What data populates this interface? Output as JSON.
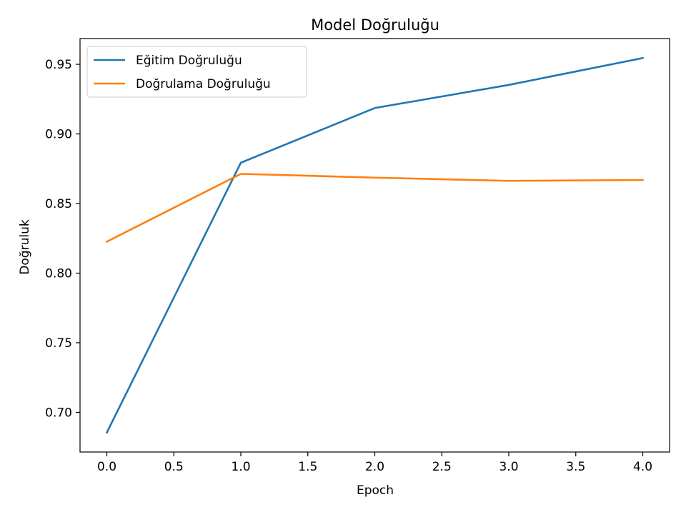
{
  "chart_data": {
    "type": "line",
    "title": "Model Doğruluğu",
    "xlabel": "Epoch",
    "ylabel": "Doğruluk",
    "x": [
      0,
      1,
      2,
      3,
      4
    ],
    "series": [
      {
        "name": "Eğitim Doğruluğu",
        "color": "#1f77b4",
        "values": [
          0.6855,
          0.8793,
          0.9186,
          0.9352,
          0.9545
        ]
      },
      {
        "name": "Doğrulama Doğruluğu",
        "color": "#ff7f0e",
        "values": [
          0.8226,
          0.8713,
          0.8686,
          0.8663,
          0.8669
        ]
      }
    ],
    "xlim": [
      -0.2,
      4.2
    ],
    "ylim": [
      0.6715,
      0.9685
    ],
    "x_ticks": [
      0.0,
      0.5,
      1.0,
      1.5,
      2.0,
      2.5,
      3.0,
      3.5,
      4.0
    ],
    "x_tick_labels": [
      "0.0",
      "0.5",
      "1.0",
      "1.5",
      "2.0",
      "2.5",
      "3.0",
      "3.5",
      "4.0"
    ],
    "y_ticks": [
      0.7,
      0.75,
      0.8,
      0.85,
      0.9,
      0.95
    ],
    "y_tick_labels": [
      "0.70",
      "0.75",
      "0.80",
      "0.85",
      "0.90",
      "0.95"
    ],
    "grid": false,
    "legend_position": "upper left"
  }
}
